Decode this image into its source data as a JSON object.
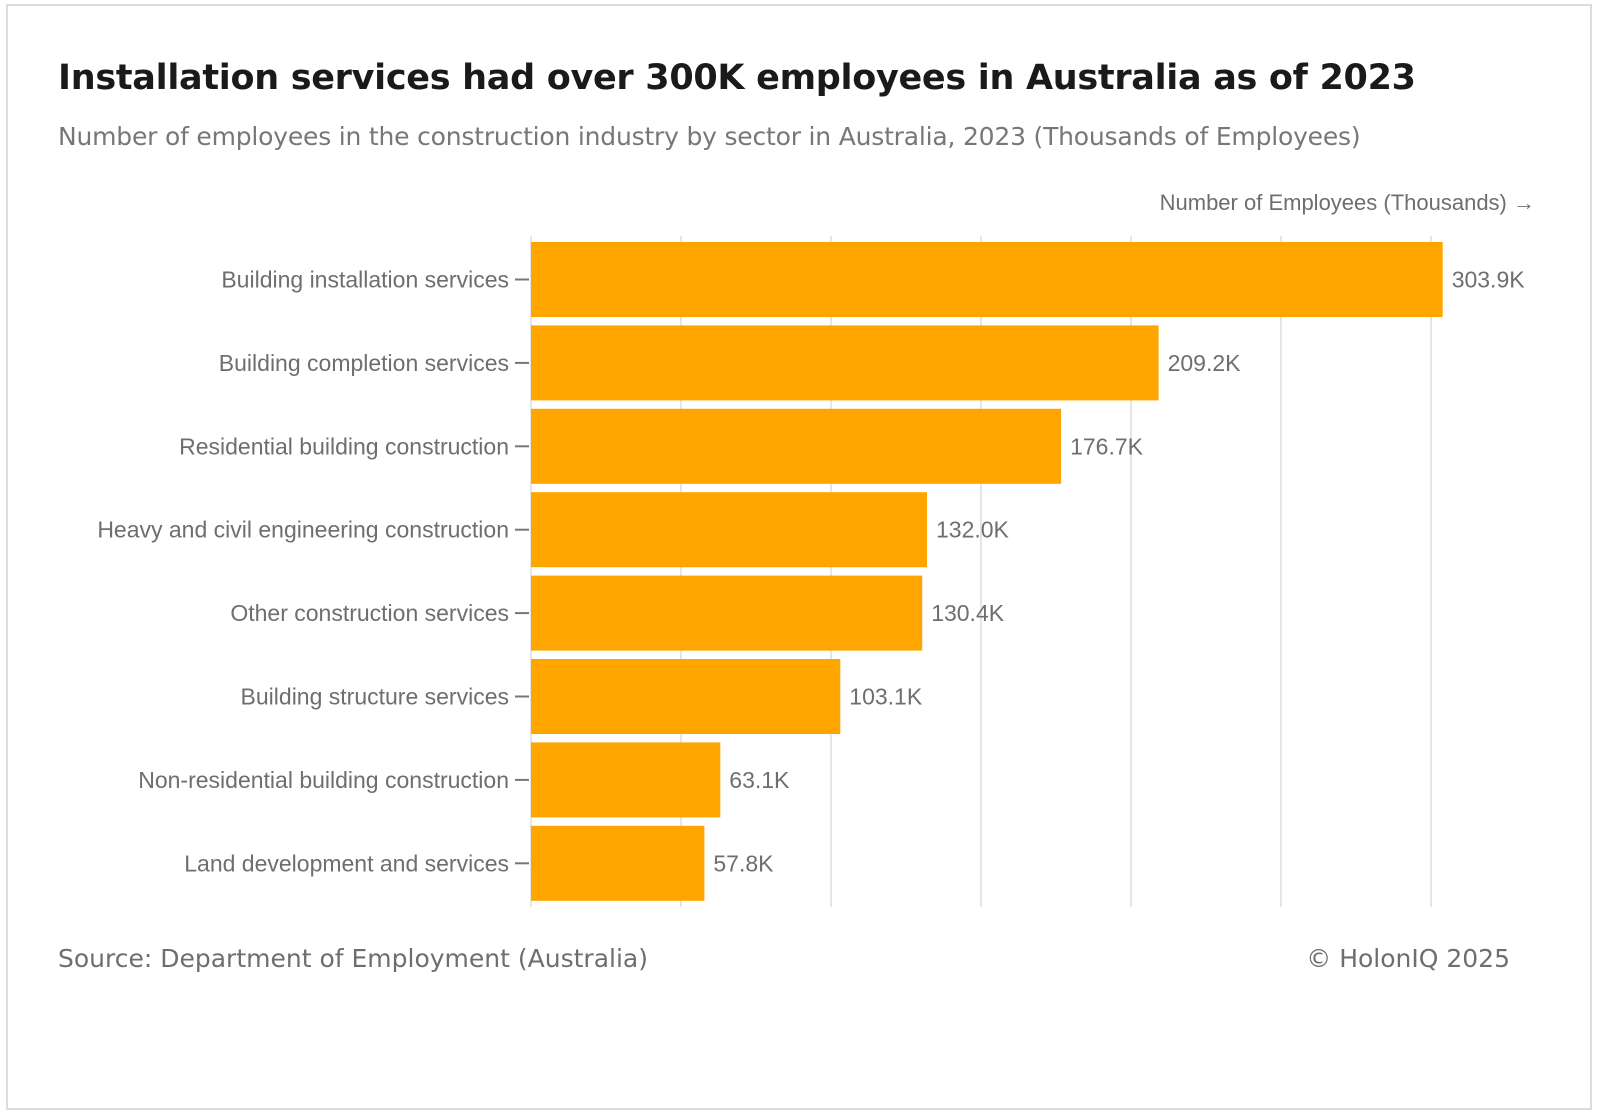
{
  "header": {
    "title": "Installation services had over 300K employees in Australia as of 2023",
    "subtitle": "Number of employees in the construction industry by sector in Australia, 2023 (Thousands of Employees)"
  },
  "footer": {
    "source": "Source: Department of Employment (Australia)",
    "copyright": "© HolonIQ 2025"
  },
  "colors": {
    "bar": "#FFA500",
    "grid": "#e6e6e6",
    "label": "#6e6e6e"
  },
  "chart_data": {
    "type": "bar",
    "orientation": "horizontal",
    "title": "Installation services had over 300K employees in Australia as of 2023",
    "xlabel": "Number of Employees (Thousands) →",
    "ylabel": "",
    "categories": [
      "Building installation services",
      "Building completion services",
      "Residential building construction",
      "Heavy and civil engineering construction",
      "Other construction services",
      "Building structure services",
      "Non-residential building construction",
      "Land development and services"
    ],
    "values": [
      303.9,
      209.2,
      176.7,
      132.0,
      130.4,
      103.1,
      63.1,
      57.8
    ],
    "value_labels": [
      "303.9K",
      "209.2K",
      "176.7K",
      "132.0K",
      "130.4K",
      "103.1K",
      "63.1K",
      "57.8K"
    ],
    "xlim": [
      0,
      350
    ],
    "grid_step": 50,
    "grid": true
  }
}
